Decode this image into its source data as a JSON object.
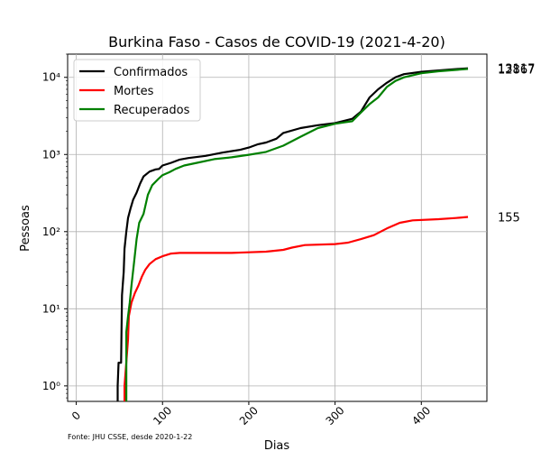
{
  "chart_data": {
    "type": "line",
    "title": "Burkina Faso - Casos de COVID-19 (2021-4-20)",
    "xlabel": "Dias",
    "ylabel": "Pessoas",
    "source_note": "Fonte: JHU CSSE, desde 2020-1-22",
    "y_scale": "log",
    "xlim": [
      -10,
      476
    ],
    "ylim": [
      0.63,
      20000
    ],
    "x_ticks": [
      0,
      100,
      200,
      300,
      400
    ],
    "x_tick_labels": [
      "0",
      "100",
      "200",
      "300",
      "400"
    ],
    "y_ticks": [
      1,
      10,
      100,
      1000,
      10000
    ],
    "y_tick_labels": [
      "10⁰",
      "10¹",
      "10²",
      "10³",
      "10⁴"
    ],
    "grid": true,
    "legend_position": "top-left",
    "series": [
      {
        "name": "Confirmados",
        "color": "#000000",
        "end_label": "13117",
        "points": [
          [
            48,
            0.6
          ],
          [
            48,
            1
          ],
          [
            49,
            2
          ],
          [
            52,
            2
          ],
          [
            53,
            15
          ],
          [
            55,
            30
          ],
          [
            56,
            60
          ],
          [
            58,
            100
          ],
          [
            60,
            150
          ],
          [
            63,
            200
          ],
          [
            66,
            260
          ],
          [
            70,
            320
          ],
          [
            74,
            420
          ],
          [
            78,
            520
          ],
          [
            85,
            600
          ],
          [
            92,
            640
          ],
          [
            96,
            650
          ],
          [
            100,
            720
          ],
          [
            110,
            780
          ],
          [
            120,
            860
          ],
          [
            130,
            900
          ],
          [
            150,
            960
          ],
          [
            170,
            1060
          ],
          [
            190,
            1150
          ],
          [
            200,
            1230
          ],
          [
            210,
            1350
          ],
          [
            220,
            1430
          ],
          [
            232,
            1600
          ],
          [
            240,
            1900
          ],
          [
            260,
            2200
          ],
          [
            280,
            2400
          ],
          [
            300,
            2550
          ],
          [
            320,
            2900
          ],
          [
            330,
            3600
          ],
          [
            340,
            5500
          ],
          [
            350,
            7000
          ],
          [
            360,
            8500
          ],
          [
            370,
            10000
          ],
          [
            380,
            11000
          ],
          [
            400,
            11800
          ],
          [
            420,
            12300
          ],
          [
            440,
            12800
          ],
          [
            454,
            13117
          ]
        ]
      },
      {
        "name": "Mortes",
        "color": "#ff0000",
        "end_label": "155",
        "points": [
          [
            56,
            0.6
          ],
          [
            56,
            1
          ],
          [
            60,
            4
          ],
          [
            61,
            8
          ],
          [
            64,
            12
          ],
          [
            68,
            16
          ],
          [
            72,
            20
          ],
          [
            76,
            26
          ],
          [
            80,
            32
          ],
          [
            85,
            38
          ],
          [
            92,
            44
          ],
          [
            100,
            48
          ],
          [
            110,
            52
          ],
          [
            120,
            53
          ],
          [
            150,
            53
          ],
          [
            180,
            53
          ],
          [
            200,
            54
          ],
          [
            220,
            55
          ],
          [
            240,
            58
          ],
          [
            250,
            62
          ],
          [
            265,
            67
          ],
          [
            300,
            69
          ],
          [
            315,
            72
          ],
          [
            330,
            80
          ],
          [
            345,
            90
          ],
          [
            360,
            110
          ],
          [
            375,
            130
          ],
          [
            390,
            140
          ],
          [
            420,
            145
          ],
          [
            440,
            150
          ],
          [
            454,
            155
          ]
        ]
      },
      {
        "name": "Recuperados",
        "color": "#008000",
        "end_label": "12867",
        "points": [
          [
            58,
            0.6
          ],
          [
            58,
            5
          ],
          [
            60,
            8
          ],
          [
            62,
            12
          ],
          [
            64,
            20
          ],
          [
            67,
            40
          ],
          [
            70,
            80
          ],
          [
            73,
            130
          ],
          [
            78,
            170
          ],
          [
            83,
            300
          ],
          [
            88,
            400
          ],
          [
            95,
            480
          ],
          [
            100,
            540
          ],
          [
            108,
            590
          ],
          [
            115,
            650
          ],
          [
            125,
            720
          ],
          [
            140,
            780
          ],
          [
            160,
            870
          ],
          [
            180,
            920
          ],
          [
            200,
            990
          ],
          [
            220,
            1080
          ],
          [
            240,
            1300
          ],
          [
            260,
            1700
          ],
          [
            280,
            2200
          ],
          [
            300,
            2500
          ],
          [
            320,
            2700
          ],
          [
            330,
            3500
          ],
          [
            340,
            4500
          ],
          [
            350,
            5500
          ],
          [
            360,
            7500
          ],
          [
            370,
            9000
          ],
          [
            380,
            10000
          ],
          [
            400,
            11300
          ],
          [
            420,
            12000
          ],
          [
            440,
            12500
          ],
          [
            454,
            12867
          ]
        ]
      }
    ]
  }
}
